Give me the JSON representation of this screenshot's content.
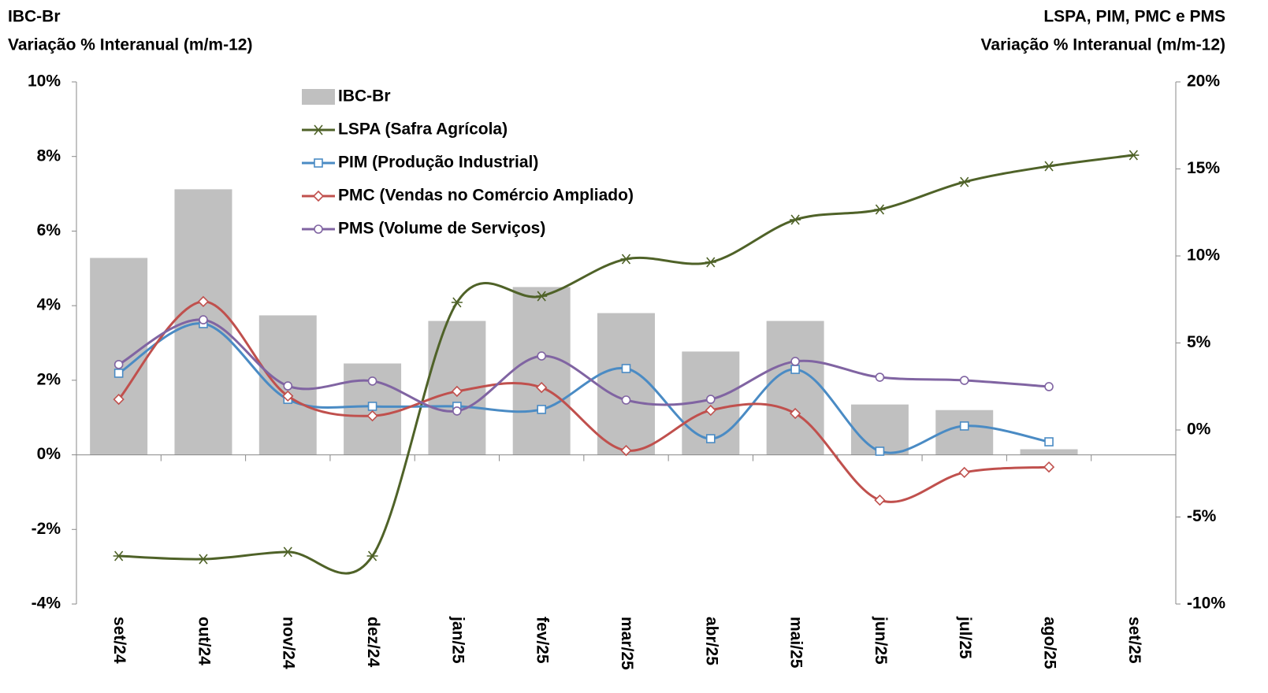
{
  "chart_data": {
    "type": "bar-line",
    "y_label": [
      "IBC-Br",
      "Variação % Interanual (m/m-12)"
    ],
    "y2_label": [
      "LSPA, PIM, PMC e PMS",
      "Variação % Interanual (m/m-12)"
    ],
    "categories": [
      "set/24",
      "out/24",
      "nov/24",
      "dez/24",
      "jan/25",
      "fev/25",
      "mar/25",
      "abr/25",
      "mai/25",
      "jun/25",
      "jul/25",
      "ago/25",
      "set/25"
    ],
    "ylim": [
      -4,
      10
    ],
    "yticks": [
      {
        "value": -4,
        "label": "-4%"
      },
      {
        "value": -2,
        "label": "-2%"
      },
      {
        "value": 0,
        "label": "0%"
      },
      {
        "value": 2,
        "label": "2%"
      },
      {
        "value": 4,
        "label": "4%"
      },
      {
        "value": 6,
        "label": "6%"
      },
      {
        "value": 8,
        "label": "8%"
      },
      {
        "value": 10,
        "label": "10%"
      }
    ],
    "y2lim": [
      -10,
      20
    ],
    "y2ticks": [
      {
        "value": -10,
        "label": "-10%"
      },
      {
        "value": -5,
        "label": "-5%"
      },
      {
        "value": 0,
        "label": "0%"
      },
      {
        "value": 5,
        "label": "5%"
      },
      {
        "value": 10,
        "label": "10%"
      },
      {
        "value": 15,
        "label": "15%"
      },
      {
        "value": 20,
        "label": "20%"
      }
    ],
    "series": [
      {
        "name": "IBC-Br",
        "type": "bar",
        "color": "#c0c0c0",
        "values": [
          5.28,
          7.12,
          3.74,
          2.45,
          3.59,
          4.5,
          3.8,
          2.77,
          3.59,
          1.35,
          1.2,
          0.15,
          null
        ]
      },
      {
        "name": "LSPA (Safra Agrícola)",
        "type": "line",
        "axis": "y2",
        "marker": "star",
        "color": "#4f6228",
        "values": [
          -7.24,
          -7.42,
          -7.01,
          -7.24,
          7.33,
          7.69,
          9.82,
          9.64,
          12.08,
          12.67,
          14.25,
          15.16,
          15.79
        ]
      },
      {
        "name": "PIM (Produção Industrial)",
        "type": "line",
        "axis": "y2",
        "marker": "square",
        "color": "#4a8bc4",
        "values": [
          3.26,
          6.11,
          1.76,
          1.36,
          1.36,
          1.18,
          3.53,
          -0.5,
          3.48,
          -1.22,
          0.23,
          -0.68,
          null
        ]
      },
      {
        "name": "PMC (Vendas no Comércio Ampliado)",
        "type": "line",
        "axis": "y2",
        "marker": "diamond",
        "color": "#c0504d",
        "values": [
          1.76,
          7.38,
          1.95,
          0.81,
          2.22,
          2.44,
          -1.18,
          1.13,
          0.95,
          -4.03,
          -2.44,
          -2.13,
          null
        ]
      },
      {
        "name": "PMS (Volume de Serviços)",
        "type": "line",
        "axis": "y2",
        "marker": "circle",
        "color": "#8064a2",
        "values": [
          3.76,
          6.33,
          2.53,
          2.81,
          1.09,
          4.25,
          1.72,
          1.76,
          3.94,
          3.03,
          2.85,
          2.49,
          null
        ]
      }
    ]
  }
}
